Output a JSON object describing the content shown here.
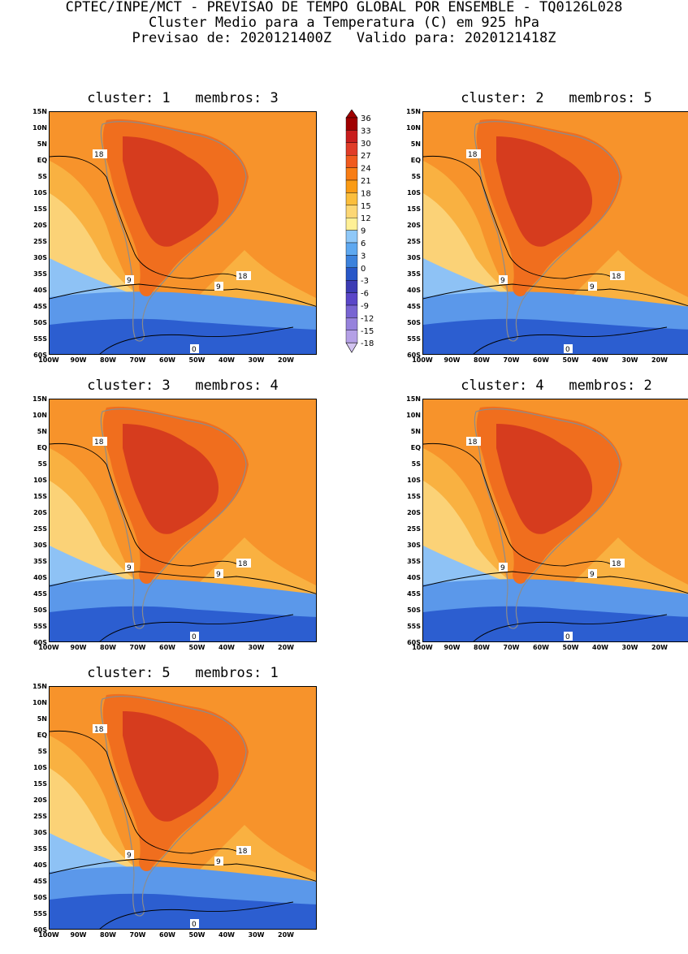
{
  "header": {
    "line1": "CPTEC/INPE/MCT - PREVISAO DE TEMPO GLOBAL POR ENSEMBLE - TQ0126L028",
    "line2": "Cluster Medio para a Temperatura (C) em 925 hPa",
    "line3": "Previsao de: 2020121400Z   Valido para: 2020121418Z"
  },
  "panels": [
    {
      "title": "cluster: 1   membros: 3"
    },
    {
      "title": "cluster: 2   membros: 5"
    },
    {
      "title": "cluster: 3   membros: 4"
    },
    {
      "title": "cluster: 4   membros: 2"
    },
    {
      "title": "cluster: 5   membros: 1"
    }
  ],
  "lat_labels": [
    "15N",
    "10N",
    "5N",
    "EQ",
    "5S",
    "10S",
    "15S",
    "20S",
    "25S",
    "30S",
    "35S",
    "40S",
    "45S",
    "50S",
    "55S",
    "60S"
  ],
  "lon_labels": [
    "100W",
    "90W",
    "80W",
    "70W",
    "60W",
    "50W",
    "40W",
    "30W",
    "20W"
  ],
  "contour_labels": [
    "18",
    "9",
    "0"
  ],
  "colorbar": {
    "levels": [
      "36",
      "33",
      "30",
      "27",
      "24",
      "21",
      "18",
      "15",
      "12",
      "9",
      "6",
      "3",
      "0",
      "-3",
      "-6",
      "-9",
      "-12",
      "-15",
      "-18"
    ],
    "colors": [
      "#a00000",
      "#c81e1e",
      "#e03c28",
      "#f05a1e",
      "#f87d14",
      "#fa9b14",
      "#fbbe3c",
      "#fcd775",
      "#fff096",
      "#8fc8f8",
      "#5ea8f0",
      "#3c82dc",
      "#2857c8",
      "#3c3cb4",
      "#5a46c8",
      "#7864d2",
      "#9682dc",
      "#b4a0e6",
      "#d2c3f0"
    ]
  },
  "palette": {
    "hot": "#d63c1e",
    "warm": "#f06e1e",
    "orange": "#f7932b",
    "lightorange": "#f9b141",
    "yellow": "#fbd277",
    "lightblue": "#8ec2f5",
    "blue": "#5b98ea",
    "darkblue": "#2c5ed0",
    "land_line": "#8c8c8c"
  }
}
